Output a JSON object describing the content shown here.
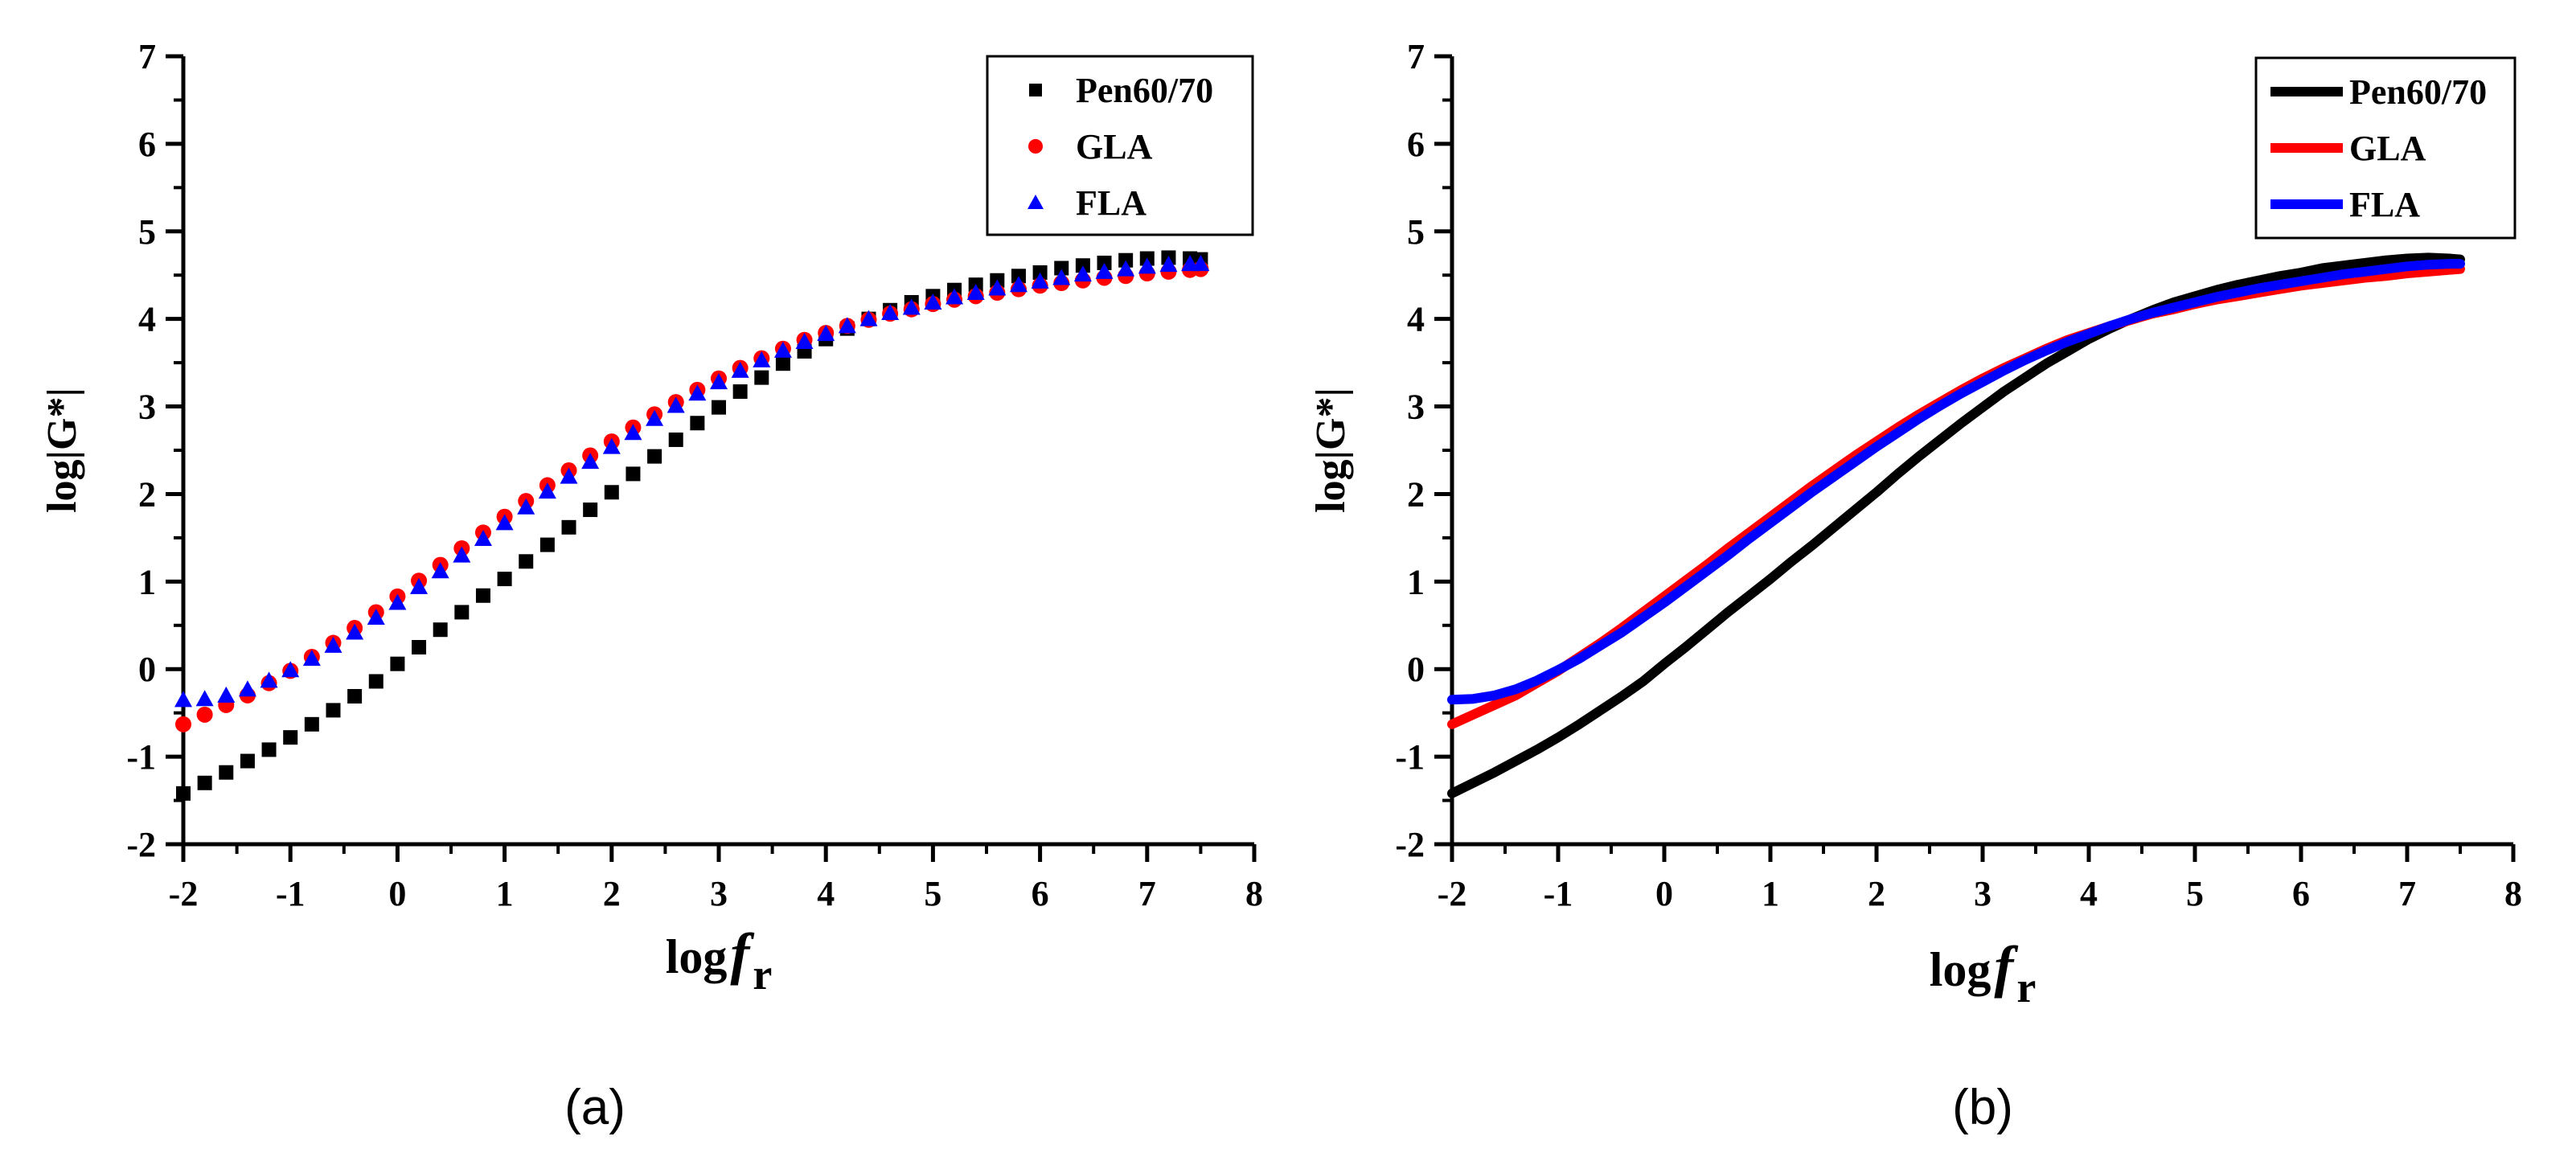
{
  "chart_data": [
    {
      "type": "scatter",
      "caption": "(a)",
      "xlabel": "log",
      "xlabel_symbol": "f",
      "xlabel_subscript": "r",
      "ylabel": "log|G*|",
      "xlim": [
        -2,
        8
      ],
      "ylim": [
        -2,
        7
      ],
      "x_ticks": [
        "-2",
        "-1",
        "0",
        "1",
        "2",
        "3",
        "4",
        "5",
        "6",
        "7",
        "8"
      ],
      "y_ticks": [
        "-2",
        "-1",
        "0",
        "1",
        "2",
        "3",
        "4",
        "5",
        "6",
        "7"
      ],
      "legend_position": "top-right",
      "series": [
        {
          "name": "Pen60/70",
          "color": "#000000",
          "marker": "square",
          "x": [
            -2.0,
            -1.8,
            -1.6,
            -1.4,
            -1.2,
            -1.0,
            -0.8,
            -0.6,
            -0.4,
            -0.2,
            0.0,
            0.2,
            0.4,
            0.6,
            0.8,
            1.0,
            1.2,
            1.4,
            1.6,
            1.8,
            2.0,
            2.2,
            2.4,
            2.6,
            2.8,
            3.0,
            3.2,
            3.4,
            3.6,
            3.8,
            4.0,
            4.2,
            4.4,
            4.6,
            4.8,
            5.0,
            5.2,
            5.4,
            5.6,
            5.8,
            6.0,
            6.2,
            6.4,
            6.6,
            6.8,
            7.0,
            7.2,
            7.4,
            7.5
          ],
          "y": [
            -1.42,
            -1.3,
            -1.18,
            -1.05,
            -0.92,
            -0.78,
            -0.63,
            -0.47,
            -0.31,
            -0.14,
            0.06,
            0.25,
            0.45,
            0.65,
            0.84,
            1.03,
            1.23,
            1.42,
            1.62,
            1.82,
            2.02,
            2.23,
            2.43,
            2.62,
            2.81,
            2.99,
            3.17,
            3.33,
            3.49,
            3.63,
            3.77,
            3.89,
            4.0,
            4.1,
            4.19,
            4.26,
            4.33,
            4.39,
            4.44,
            4.49,
            4.53,
            4.58,
            4.61,
            4.64,
            4.67,
            4.69,
            4.7,
            4.69,
            4.68
          ]
        },
        {
          "name": "GLA",
          "color": "#ff0000",
          "marker": "circle",
          "x": [
            -2.0,
            -1.8,
            -1.6,
            -1.4,
            -1.2,
            -1.0,
            -0.8,
            -0.6,
            -0.4,
            -0.2,
            0.0,
            0.2,
            0.4,
            0.6,
            0.8,
            1.0,
            1.2,
            1.4,
            1.6,
            1.8,
            2.0,
            2.2,
            2.4,
            2.6,
            2.8,
            3.0,
            3.2,
            3.4,
            3.6,
            3.8,
            4.0,
            4.2,
            4.4,
            4.6,
            4.8,
            5.0,
            5.2,
            5.4,
            5.6,
            5.8,
            6.0,
            6.2,
            6.4,
            6.6,
            6.8,
            7.0,
            7.2,
            7.4,
            7.5
          ],
          "y": [
            -0.63,
            -0.52,
            -0.41,
            -0.3,
            -0.16,
            -0.02,
            0.14,
            0.3,
            0.47,
            0.65,
            0.83,
            1.01,
            1.19,
            1.38,
            1.56,
            1.74,
            1.92,
            2.1,
            2.27,
            2.44,
            2.6,
            2.76,
            2.91,
            3.05,
            3.19,
            3.32,
            3.44,
            3.55,
            3.66,
            3.76,
            3.84,
            3.92,
            3.99,
            4.06,
            4.11,
            4.17,
            4.22,
            4.26,
            4.3,
            4.34,
            4.38,
            4.41,
            4.44,
            4.47,
            4.49,
            4.52,
            4.54,
            4.56,
            4.57
          ]
        },
        {
          "name": "FLA",
          "color": "#0000ff",
          "marker": "triangle",
          "x": [
            -2.0,
            -1.8,
            -1.6,
            -1.4,
            -1.2,
            -1.0,
            -0.8,
            -0.6,
            -0.4,
            -0.2,
            0.0,
            0.2,
            0.4,
            0.6,
            0.8,
            1.0,
            1.2,
            1.4,
            1.6,
            1.8,
            2.0,
            2.2,
            2.4,
            2.6,
            2.8,
            3.0,
            3.2,
            3.4,
            3.6,
            3.8,
            4.0,
            4.2,
            4.4,
            4.6,
            4.8,
            5.0,
            5.2,
            5.4,
            5.6,
            5.8,
            6.0,
            6.2,
            6.4,
            6.6,
            6.8,
            7.0,
            7.2,
            7.4,
            7.5
          ],
          "y": [
            -0.35,
            -0.34,
            -0.3,
            -0.23,
            -0.13,
            -0.01,
            0.12,
            0.27,
            0.42,
            0.59,
            0.76,
            0.94,
            1.12,
            1.3,
            1.49,
            1.67,
            1.85,
            2.03,
            2.2,
            2.37,
            2.54,
            2.7,
            2.86,
            3.01,
            3.15,
            3.28,
            3.41,
            3.53,
            3.64,
            3.74,
            3.83,
            3.92,
            4.0,
            4.07,
            4.13,
            4.19,
            4.25,
            4.3,
            4.35,
            4.39,
            4.43,
            4.47,
            4.51,
            4.54,
            4.57,
            4.6,
            4.62,
            4.63,
            4.63
          ]
        }
      ]
    },
    {
      "type": "line",
      "caption": "(b)",
      "xlabel": "log",
      "xlabel_symbol": "f",
      "xlabel_subscript": "r",
      "ylabel": "log|G*|",
      "xlim": [
        -2,
        8
      ],
      "ylim": [
        -2,
        7
      ],
      "x_ticks": [
        "-2",
        "-1",
        "0",
        "1",
        "2",
        "3",
        "4",
        "5",
        "6",
        "7",
        "8"
      ],
      "y_ticks": [
        "-2",
        "-1",
        "0",
        "1",
        "2",
        "3",
        "4",
        "5",
        "6",
        "7"
      ],
      "legend_position": "top-right",
      "series": [
        {
          "name": "Pen60/70",
          "color": "#000000",
          "x": [
            -2.0,
            -1.8,
            -1.6,
            -1.4,
            -1.2,
            -1.0,
            -0.8,
            -0.6,
            -0.4,
            -0.2,
            0.0,
            0.2,
            0.4,
            0.6,
            0.8,
            1.0,
            1.2,
            1.4,
            1.6,
            1.8,
            2.0,
            2.2,
            2.4,
            2.6,
            2.8,
            3.0,
            3.2,
            3.4,
            3.6,
            3.8,
            4.0,
            4.2,
            4.4,
            4.6,
            4.8,
            5.0,
            5.2,
            5.4,
            5.6,
            5.8,
            6.0,
            6.2,
            6.4,
            6.6,
            6.8,
            7.0,
            7.2,
            7.4,
            7.5
          ],
          "y": [
            -1.42,
            -1.3,
            -1.18,
            -1.05,
            -0.92,
            -0.78,
            -0.63,
            -0.47,
            -0.31,
            -0.14,
            0.06,
            0.25,
            0.45,
            0.65,
            0.84,
            1.03,
            1.23,
            1.42,
            1.62,
            1.82,
            2.02,
            2.23,
            2.43,
            2.62,
            2.81,
            2.99,
            3.17,
            3.33,
            3.49,
            3.63,
            3.77,
            3.89,
            4.0,
            4.1,
            4.19,
            4.26,
            4.33,
            4.39,
            4.44,
            4.49,
            4.53,
            4.58,
            4.61,
            4.64,
            4.67,
            4.69,
            4.7,
            4.69,
            4.68
          ]
        },
        {
          "name": "GLA",
          "color": "#ff0000",
          "x": [
            -2.0,
            -1.8,
            -1.6,
            -1.4,
            -1.2,
            -1.0,
            -0.8,
            -0.6,
            -0.4,
            -0.2,
            0.0,
            0.2,
            0.4,
            0.6,
            0.8,
            1.0,
            1.2,
            1.4,
            1.6,
            1.8,
            2.0,
            2.2,
            2.4,
            2.6,
            2.8,
            3.0,
            3.2,
            3.4,
            3.6,
            3.8,
            4.0,
            4.2,
            4.4,
            4.6,
            4.8,
            5.0,
            5.2,
            5.4,
            5.6,
            5.8,
            6.0,
            6.2,
            6.4,
            6.6,
            6.8,
            7.0,
            7.2,
            7.4,
            7.5
          ],
          "y": [
            -0.63,
            -0.52,
            -0.41,
            -0.3,
            -0.16,
            -0.02,
            0.14,
            0.3,
            0.47,
            0.65,
            0.83,
            1.01,
            1.19,
            1.38,
            1.56,
            1.74,
            1.92,
            2.1,
            2.27,
            2.44,
            2.6,
            2.76,
            2.91,
            3.05,
            3.19,
            3.32,
            3.44,
            3.55,
            3.66,
            3.76,
            3.84,
            3.92,
            3.99,
            4.06,
            4.11,
            4.17,
            4.22,
            4.26,
            4.3,
            4.34,
            4.38,
            4.41,
            4.44,
            4.47,
            4.49,
            4.52,
            4.54,
            4.56,
            4.57
          ]
        },
        {
          "name": "FLA",
          "color": "#0000ff",
          "x": [
            -2.0,
            -1.8,
            -1.6,
            -1.4,
            -1.2,
            -1.0,
            -0.8,
            -0.6,
            -0.4,
            -0.2,
            0.0,
            0.2,
            0.4,
            0.6,
            0.8,
            1.0,
            1.2,
            1.4,
            1.6,
            1.8,
            2.0,
            2.2,
            2.4,
            2.6,
            2.8,
            3.0,
            3.2,
            3.4,
            3.6,
            3.8,
            4.0,
            4.2,
            4.4,
            4.6,
            4.8,
            5.0,
            5.2,
            5.4,
            5.6,
            5.8,
            6.0,
            6.2,
            6.4,
            6.6,
            6.8,
            7.0,
            7.2,
            7.4,
            7.5
          ],
          "y": [
            -0.35,
            -0.34,
            -0.3,
            -0.23,
            -0.13,
            -0.01,
            0.12,
            0.27,
            0.42,
            0.59,
            0.76,
            0.94,
            1.12,
            1.3,
            1.49,
            1.67,
            1.85,
            2.03,
            2.2,
            2.37,
            2.54,
            2.7,
            2.86,
            3.01,
            3.15,
            3.28,
            3.41,
            3.53,
            3.64,
            3.74,
            3.83,
            3.92,
            4.0,
            4.07,
            4.13,
            4.19,
            4.25,
            4.3,
            4.35,
            4.39,
            4.43,
            4.47,
            4.51,
            4.54,
            4.57,
            4.6,
            4.62,
            4.63,
            4.63
          ]
        }
      ]
    }
  ]
}
